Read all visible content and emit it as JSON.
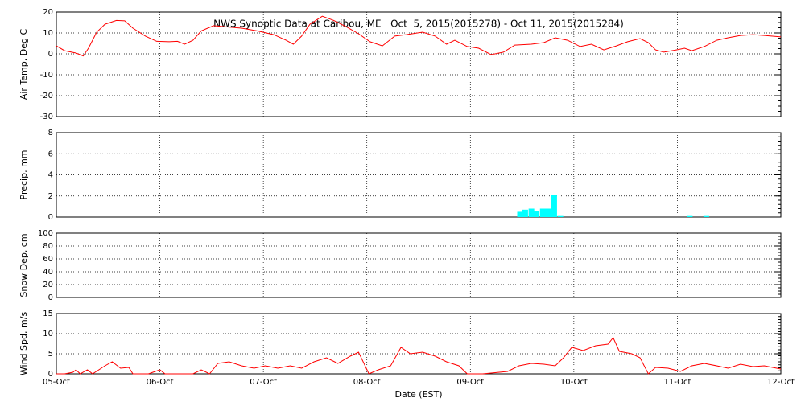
{
  "chart_data": [
    {
      "type": "line",
      "title": "NWS Synoptic Data at Caribou, ME   Oct  5, 2015(2015278) - Oct 11, 2015(2015284)",
      "ylabel": "Air Temp, Deg C",
      "color": "#ff0000",
      "xlim": [
        0,
        7
      ],
      "xticks": [
        0,
        1,
        2,
        3,
        4,
        5,
        6,
        7
      ],
      "ylim": [
        -30,
        20
      ],
      "yticks": [
        -30,
        -20,
        -10,
        0,
        10,
        20
      ],
      "grid": true,
      "x": [
        0,
        0.08,
        0.19,
        0.26,
        0.31,
        0.39,
        0.47,
        0.58,
        0.66,
        0.74,
        0.86,
        0.97,
        1.09,
        1.17,
        1.24,
        1.32,
        1.4,
        1.52,
        1.63,
        1.79,
        1.94,
        2.1,
        2.22,
        2.29,
        2.37,
        2.45,
        2.57,
        2.68,
        2.8,
        2.92,
        3.03,
        3.15,
        3.27,
        3.38,
        3.54,
        3.66,
        3.77,
        3.85,
        3.97,
        4.08,
        4.2,
        4.32,
        4.43,
        4.59,
        4.71,
        4.82,
        4.94,
        5.06,
        5.17,
        5.29,
        5.41,
        5.52,
        5.64,
        5.72,
        5.79,
        5.87,
        5.99,
        6.07,
        6.14,
        6.26,
        6.38,
        6.49,
        6.61,
        6.73,
        6.84,
        7
      ],
      "values": [
        3.8,
        1.5,
        0.4,
        -1,
        2.7,
        10.4,
        14.2,
        16,
        15.8,
        12.3,
        8.5,
        6,
        5.8,
        6,
        4.6,
        6.5,
        11,
        13.5,
        13,
        12.3,
        11,
        9.2,
        6.5,
        4.6,
        8.5,
        14.2,
        18,
        16,
        13,
        9.6,
        5.8,
        3.8,
        8.5,
        9.2,
        10.4,
        8.5,
        4.6,
        6.5,
        3.5,
        2.7,
        -0.4,
        0.8,
        4.2,
        4.6,
        5.4,
        7.7,
        6.5,
        3.5,
        4.6,
        1.9,
        3.8,
        5.8,
        7.3,
        5.4,
        1.9,
        0.8,
        1.9,
        2.7,
        1.5,
        3.5,
        6.5,
        7.7,
        8.8,
        9.2,
        8.8,
        8.1
      ]
    },
    {
      "type": "bar",
      "ylabel": "Precip, mm",
      "color": "#00ffff",
      "xlim": [
        0,
        7
      ],
      "xticks": [
        0,
        1,
        2,
        3,
        4,
        5,
        6,
        7
      ],
      "ylim": [
        0,
        8
      ],
      "yticks": [
        0,
        2,
        4,
        6,
        8
      ],
      "grid": true,
      "x": [
        4.48,
        4.53,
        4.59,
        4.64,
        4.7,
        4.75,
        4.81,
        4.87,
        6.12,
        6.28
      ],
      "values": [
        0.5,
        0.7,
        0.8,
        0.6,
        0.8,
        0.8,
        2.1,
        0.1,
        0.1,
        0.1
      ]
    },
    {
      "type": "line",
      "ylabel": "Snow Dep, cm",
      "xlim": [
        0,
        7
      ],
      "xticks": [
        0,
        1,
        2,
        3,
        4,
        5,
        6,
        7
      ],
      "ylim": [
        0,
        100
      ],
      "yticks": [
        0,
        20,
        40,
        60,
        80,
        100
      ],
      "grid": true
    },
    {
      "type": "line",
      "ylabel": "Wind Spd, m/s",
      "xlabel": "Date (EST)",
      "color": "#ff0000",
      "xlim": [
        0,
        7
      ],
      "xticks": [
        {
          "value": 0,
          "label": "05-Oct"
        },
        {
          "value": 1,
          "label": "06-Oct"
        },
        {
          "value": 2,
          "label": "07-Oct"
        },
        {
          "value": 3,
          "label": "08-Oct"
        },
        {
          "value": 4,
          "label": "09-Oct"
        },
        {
          "value": 5,
          "label": "10-Oct"
        },
        {
          "value": 6,
          "label": "11-Oct"
        },
        {
          "value": 7,
          "label": "12-Oct"
        }
      ],
      "ylim": [
        0,
        15
      ],
      "yticks": [
        0,
        5,
        10,
        15
      ],
      "grid": true,
      "x": [
        0,
        0.08,
        0.16,
        0.19,
        0.23,
        0.3,
        0.35,
        0.47,
        0.54,
        0.62,
        0.7,
        0.74,
        0.89,
        1,
        1.05,
        1.32,
        1.4,
        1.48,
        1.56,
        1.67,
        1.79,
        1.91,
        2.02,
        2.14,
        2.26,
        2.37,
        2.49,
        2.61,
        2.72,
        2.84,
        2.92,
        3.02,
        3.11,
        3.23,
        3.33,
        3.42,
        3.54,
        3.66,
        3.77,
        3.89,
        3.97,
        4.12,
        4.36,
        4.47,
        4.59,
        4.71,
        4.82,
        4.9,
        4.98,
        5.09,
        5.21,
        5.33,
        5.38,
        5.44,
        5.56,
        5.64,
        5.72,
        5.79,
        5.91,
        6.03,
        6.14,
        6.26,
        6.38,
        6.49,
        6.61,
        6.73,
        6.84,
        6.96,
        7
      ],
      "values": [
        0,
        0,
        0.4,
        1,
        0,
        1,
        0,
        2,
        3,
        1.4,
        1.6,
        0,
        0,
        1,
        0,
        0,
        1,
        0,
        2.6,
        3,
        2,
        1.4,
        2,
        1.4,
        2,
        1.4,
        3,
        4,
        2.6,
        4.4,
        5.4,
        0,
        1,
        2,
        6.6,
        5,
        5.4,
        4.4,
        3,
        2,
        0,
        0,
        0.6,
        2,
        2.6,
        2.4,
        2,
        4,
        6.6,
        5.8,
        7,
        7.4,
        9,
        5.6,
        5,
        4,
        0,
        1.6,
        1.4,
        0.6,
        2,
        2.6,
        2,
        1.4,
        2.4,
        1.8,
        2,
        1.4,
        1.2
      ]
    }
  ]
}
